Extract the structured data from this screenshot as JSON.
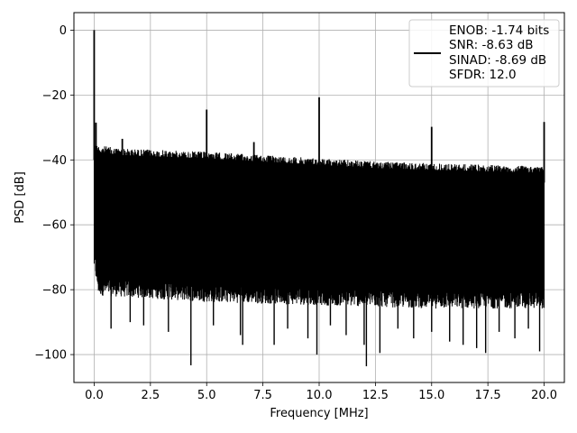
{
  "chart_data": {
    "type": "line",
    "title": "",
    "xlabel": "Frequency [MHz]",
    "ylabel": "PSD [dB]",
    "xlim": [
      -0.9,
      20.9
    ],
    "ylim": [
      -108.6,
      5.4
    ],
    "grid": true,
    "x_ticks": [
      0.0,
      2.5,
      5.0,
      7.5,
      10.0,
      12.5,
      15.0,
      17.5,
      20.0
    ],
    "x_tick_labels": [
      "0.0",
      "2.5",
      "5.0",
      "7.5",
      "10.0",
      "12.5",
      "15.0",
      "17.5",
      "20.0"
    ],
    "y_ticks": [
      0,
      -20,
      -40,
      -60,
      -80,
      -100
    ],
    "y_tick_labels": [
      "0",
      "−20",
      "−40",
      "−60",
      "−80",
      "−100"
    ],
    "legend": {
      "placement": "upper right",
      "entries": [
        "ENOB: -1.74 bits",
        "SNR: -8.63 dB",
        "SINAD: -8.69 dB",
        "SFDR: 12.0"
      ]
    },
    "series": [
      {
        "color": "#000000",
        "noise_floor": {
          "x_range": [
            0.0,
            20.0
          ],
          "upper_envelope": [
            [
              0.0,
              -35
            ],
            [
              0.2,
              -35.5
            ],
            [
              1.25,
              -36.5
            ],
            [
              5.0,
              -37.5
            ],
            [
              7.5,
              -38.5
            ],
            [
              10.0,
              -39.5
            ],
            [
              12.5,
              -40.5
            ],
            [
              15.0,
              -41
            ],
            [
              17.5,
              -41.5
            ],
            [
              20.0,
              -42
            ]
          ],
          "lower_envelope": [
            [
              0.0,
              -72
            ],
            [
              0.2,
              -80
            ],
            [
              5.0,
              -82
            ],
            [
              10.0,
              -83
            ],
            [
              15.0,
              -84
            ],
            [
              20.0,
              -84
            ]
          ]
        },
        "peaks": [
          {
            "x": 0.0,
            "y": 0.0
          },
          {
            "x": 0.08,
            "y": -28.5
          },
          {
            "x": 1.25,
            "y": -33.5
          },
          {
            "x": 5.0,
            "y": -24.5
          },
          {
            "x": 7.1,
            "y": -34.5
          },
          {
            "x": 10.0,
            "y": -20.7
          },
          {
            "x": 15.0,
            "y": -29.8
          },
          {
            "x": 20.0,
            "y": -28.3
          }
        ],
        "dips": [
          {
            "x": 0.75,
            "y": -92
          },
          {
            "x": 1.6,
            "y": -90
          },
          {
            "x": 2.2,
            "y": -91
          },
          {
            "x": 3.3,
            "y": -93
          },
          {
            "x": 4.3,
            "y": -103.3
          },
          {
            "x": 5.3,
            "y": -91
          },
          {
            "x": 6.5,
            "y": -94
          },
          {
            "x": 6.6,
            "y": -97
          },
          {
            "x": 8.0,
            "y": -97
          },
          {
            "x": 8.6,
            "y": -92
          },
          {
            "x": 9.5,
            "y": -95
          },
          {
            "x": 9.9,
            "y": -100
          },
          {
            "x": 10.5,
            "y": -91
          },
          {
            "x": 11.2,
            "y": -94
          },
          {
            "x": 12.0,
            "y": -97
          },
          {
            "x": 12.1,
            "y": -103.6
          },
          {
            "x": 12.7,
            "y": -99.5
          },
          {
            "x": 13.5,
            "y": -92
          },
          {
            "x": 14.2,
            "y": -95
          },
          {
            "x": 15.0,
            "y": -93
          },
          {
            "x": 15.8,
            "y": -96
          },
          {
            "x": 16.4,
            "y": -97
          },
          {
            "x": 17.0,
            "y": -98
          },
          {
            "x": 17.4,
            "y": -99.5
          },
          {
            "x": 18.0,
            "y": -93
          },
          {
            "x": 18.7,
            "y": -95
          },
          {
            "x": 19.3,
            "y": -92
          },
          {
            "x": 19.8,
            "y": -99
          }
        ]
      }
    ]
  }
}
